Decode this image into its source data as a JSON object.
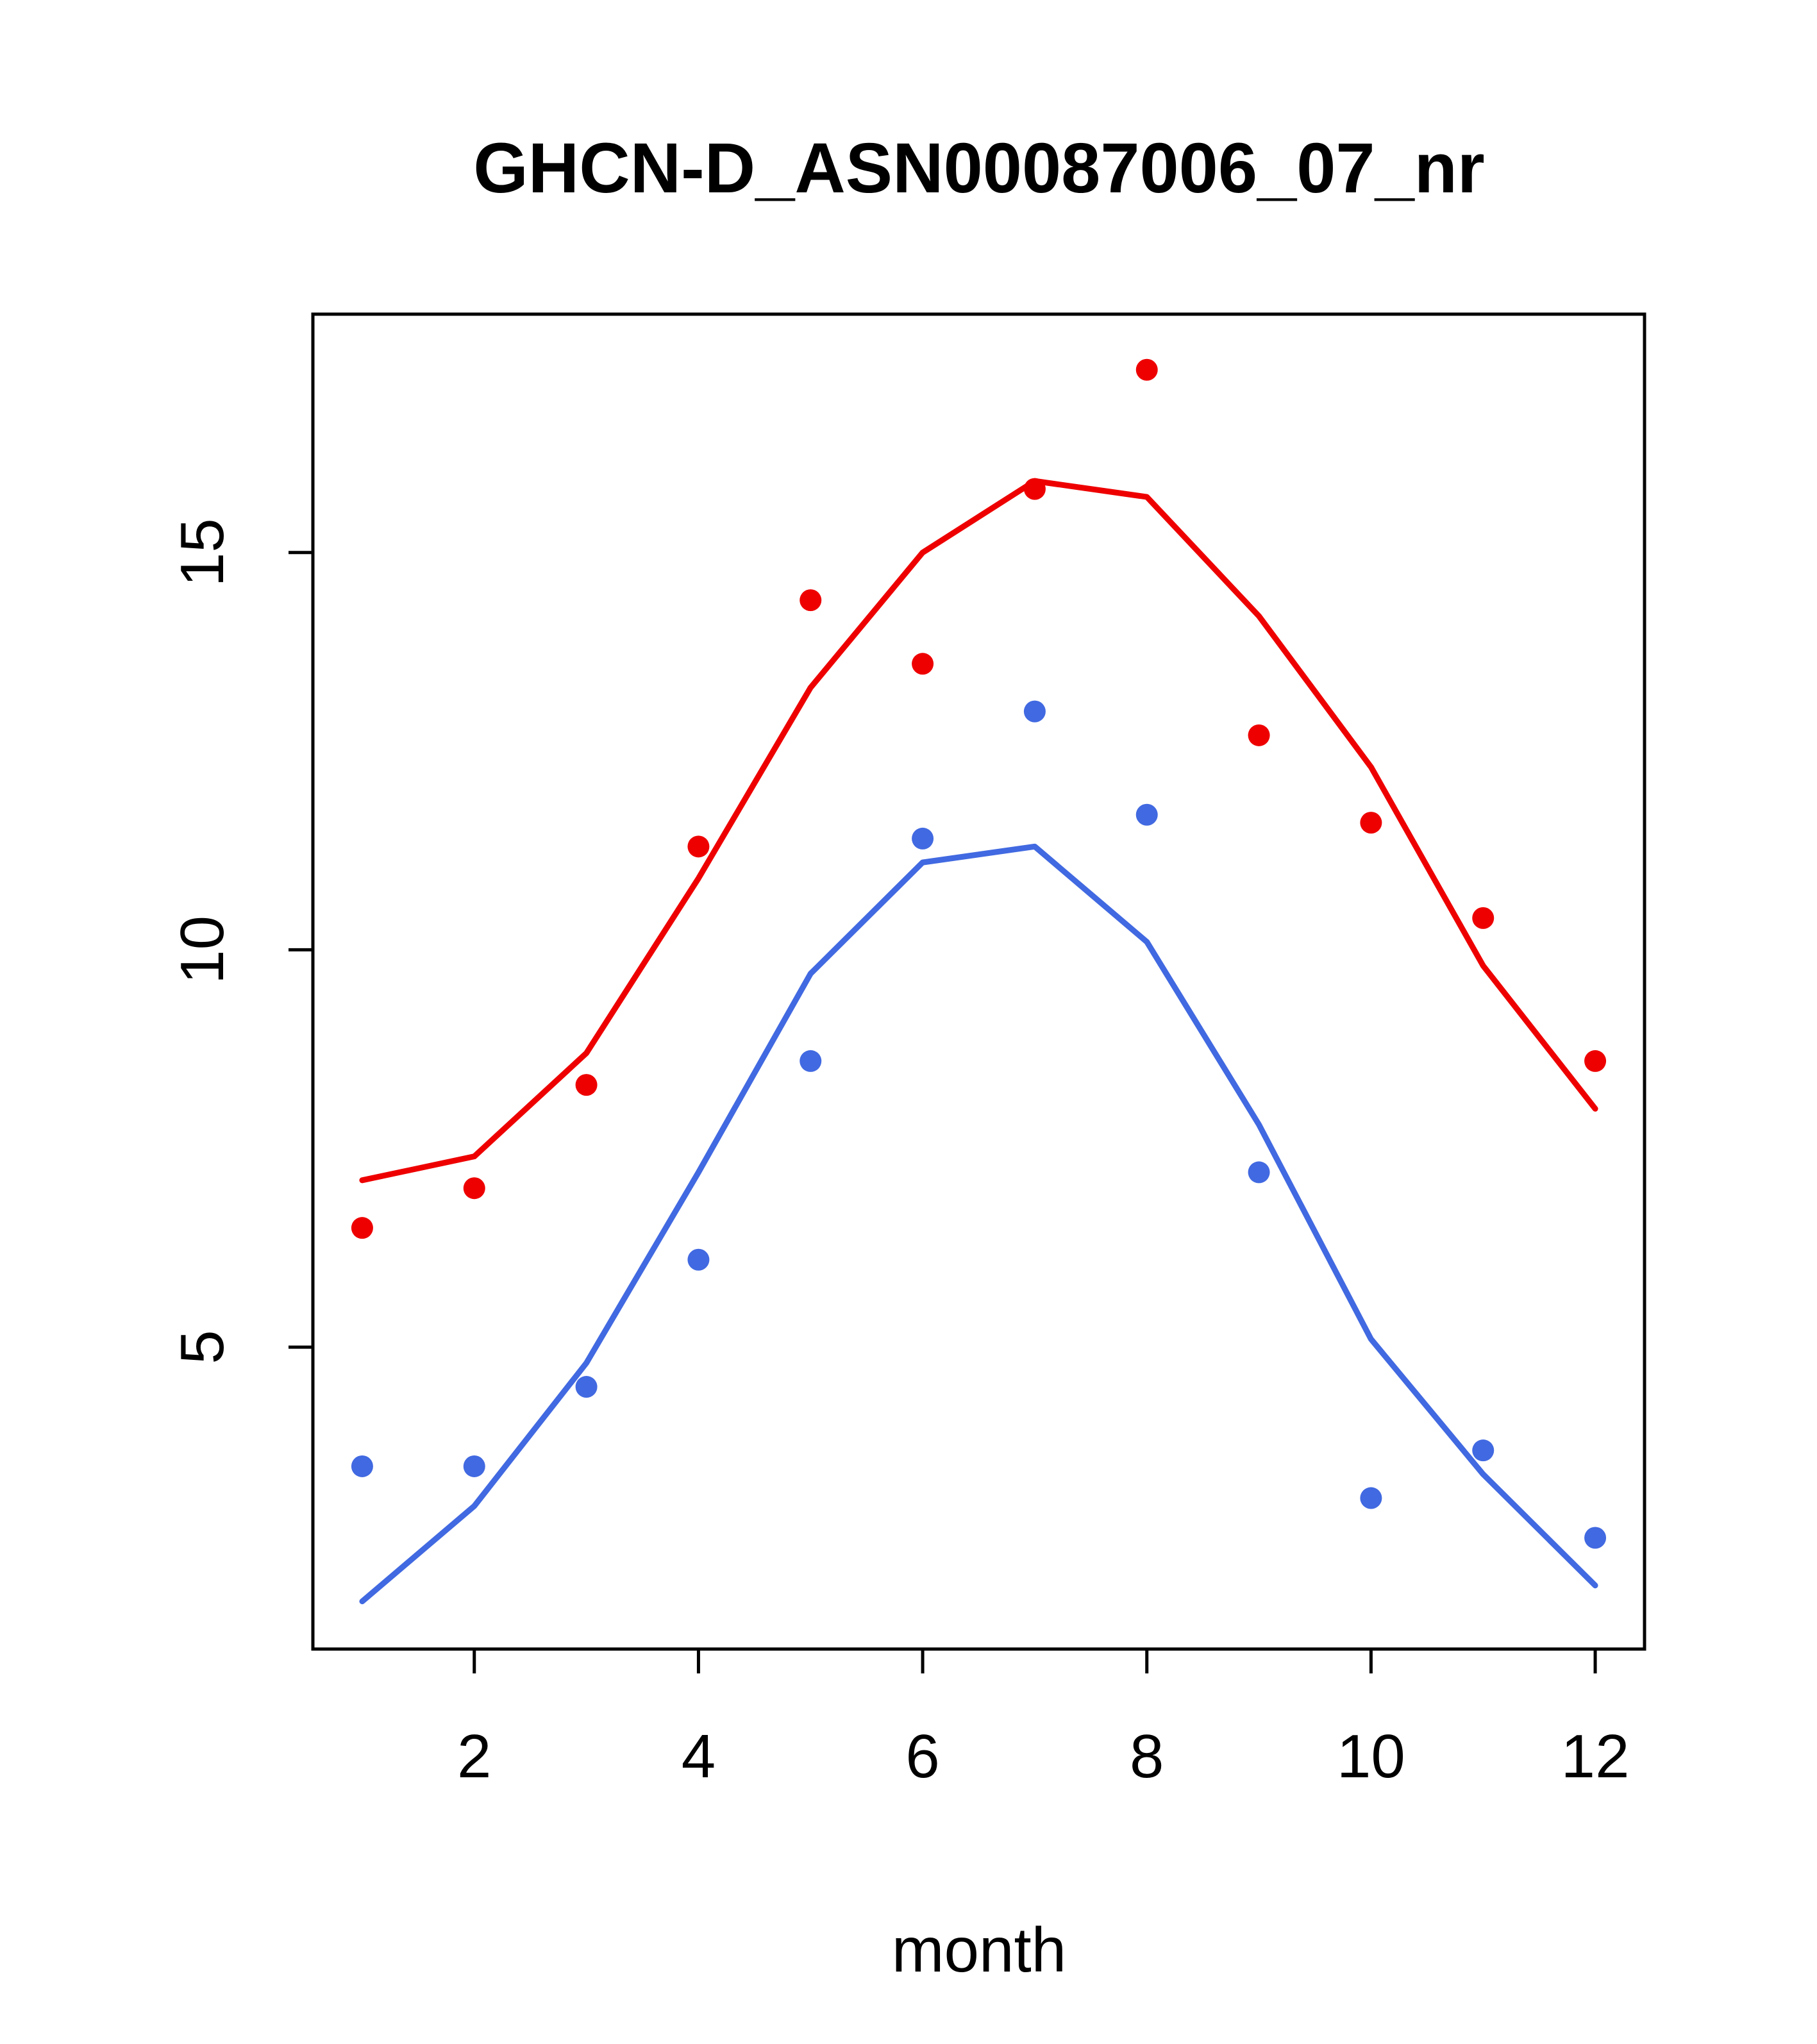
{
  "chart_data": {
    "type": "scatter",
    "title": "GHCN-D_ASN00087006_07_nr",
    "xlabel": "month",
    "ylabel": "",
    "x": [
      1,
      2,
      3,
      4,
      5,
      6,
      7,
      8,
      9,
      10,
      11,
      12
    ],
    "x_ticks": [
      2,
      4,
      6,
      8,
      10,
      12
    ],
    "y_ticks": [
      5,
      10,
      15
    ],
    "xlim": [
      0.56,
      12.44
    ],
    "ylim": [
      1.2,
      18.0
    ],
    "grid": false,
    "legend": "none",
    "colors": {
      "upper_series": "#ee0000",
      "lower_series": "#4169e1",
      "axis": "#000000",
      "background": "#ffffff"
    },
    "series": [
      {
        "name": "upper-monthly-points",
        "style": "points",
        "color": "#ee0000",
        "values": [
          6.5,
          7.0,
          8.3,
          11.3,
          14.4,
          13.6,
          15.8,
          17.3,
          12.7,
          11.6,
          10.4,
          8.6
        ]
      },
      {
        "name": "upper-fit-line",
        "style": "line",
        "color": "#ee0000",
        "values": [
          7.1,
          7.4,
          8.7,
          10.9,
          13.3,
          15.0,
          15.9,
          15.7,
          14.2,
          12.3,
          9.8,
          8.0
        ]
      },
      {
        "name": "lower-monthly-points",
        "style": "points",
        "color": "#4169e1",
        "values": [
          3.5,
          3.5,
          4.5,
          6.1,
          8.6,
          11.4,
          13.0,
          11.7,
          7.2,
          3.1,
          3.7,
          2.6
        ]
      },
      {
        "name": "lower-fit-line",
        "style": "line",
        "color": "#4169e1",
        "values": [
          1.8,
          3.0,
          4.8,
          7.2,
          9.7,
          11.1,
          11.3,
          10.1,
          7.8,
          5.1,
          3.4,
          2.0
        ]
      }
    ]
  }
}
